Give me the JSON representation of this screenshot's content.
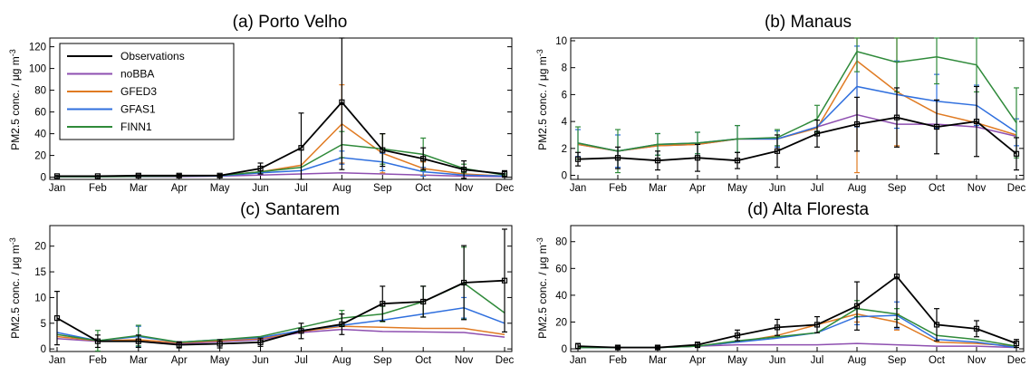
{
  "legend": {
    "entries": [
      {
        "name": "Observations",
        "color": "#000000"
      },
      {
        "name": "noBBA",
        "color": "#8e4fb0"
      },
      {
        "name": "GFED3",
        "color": "#e07b23"
      },
      {
        "name": "GFAS1",
        "color": "#2f6fde"
      },
      {
        "name": "FINN1",
        "color": "#2f8a3a"
      }
    ],
    "placement": "top-left of panel (a)"
  },
  "chart_data": [
    {
      "type": "line",
      "title": "(a) Porto Velho",
      "ylabel": "PM2.5 conc. / μg m⁻³",
      "ylabel_main": "PM2.5 conc. / μg m",
      "ylabel_exp": "-3",
      "categories": [
        "Jan",
        "Feb",
        "Mar",
        "Apr",
        "May",
        "Jun",
        "Jul",
        "Aug",
        "Sep",
        "Oct",
        "Nov",
        "Dec"
      ],
      "ylim": [
        -2,
        128
      ],
      "yticks": [
        0,
        20,
        40,
        60,
        80,
        100,
        120
      ],
      "series": [
        {
          "name": "Observations",
          "color": "#000000",
          "values": [
            1,
            1,
            1.5,
            1.5,
            1.5,
            8,
            27,
            69,
            25,
            17,
            7,
            3
          ],
          "err": [
            0.5,
            0.5,
            0.8,
            1,
            1,
            5,
            32,
            62,
            15,
            10,
            8,
            3
          ]
        },
        {
          "name": "noBBA",
          "color": "#8e4fb0",
          "values": [
            0.5,
            0.5,
            0.5,
            0.5,
            1,
            2,
            3,
            4,
            3,
            2,
            1,
            0.5
          ]
        },
        {
          "name": "GFED3",
          "color": "#e07b23",
          "values": [
            0.5,
            0.5,
            0.8,
            1,
            1.5,
            5,
            11,
            49,
            22,
            8,
            3,
            1
          ],
          "err": [
            0,
            0,
            0,
            0,
            0,
            0,
            0,
            36,
            18,
            6,
            0,
            0
          ]
        },
        {
          "name": "GFAS1",
          "color": "#2f6fde",
          "values": [
            0.5,
            0.5,
            0.8,
            1,
            1.2,
            4,
            6,
            18,
            14,
            5,
            2,
            1
          ],
          "err": [
            0,
            0,
            0,
            0,
            0,
            0,
            0,
            6,
            8,
            4,
            0,
            0
          ]
        },
        {
          "name": "FINN1",
          "color": "#2f8a3a",
          "values": [
            0.5,
            0.5,
            0.8,
            1,
            1.5,
            5,
            9,
            30,
            26,
            21,
            8,
            2
          ],
          "err": [
            0,
            0,
            0,
            0,
            0,
            0,
            0,
            12,
            14,
            15,
            4,
            1
          ]
        }
      ]
    },
    {
      "type": "line",
      "title": "(b) Manaus",
      "ylabel": "PM2.5 conc. / μg m⁻³",
      "ylabel_main": "PM2.5 conc. / μg m",
      "ylabel_exp": "-3",
      "categories": [
        "Jan",
        "Feb",
        "Mar",
        "Apr",
        "May",
        "Jun",
        "Jul",
        "Aug",
        "Sep",
        "Oct",
        "Nov",
        "Dec"
      ],
      "ylim": [
        -0.3,
        10.2
      ],
      "yticks": [
        0,
        2,
        4,
        6,
        8,
        10
      ],
      "series": [
        {
          "name": "Observations",
          "color": "#000000",
          "values": [
            1.2,
            1.3,
            1.1,
            1.3,
            1.1,
            1.8,
            3.1,
            3.8,
            4.3,
            3.6,
            4.0,
            1.6
          ],
          "err": [
            0.5,
            0.8,
            0.7,
            1,
            0.6,
            1.2,
            1,
            2,
            2.2,
            2,
            2.6,
            1.2
          ]
        },
        {
          "name": "noBBA",
          "color": "#8e4fb0",
          "values": [
            2.3,
            1.8,
            2.2,
            2.3,
            2.7,
            2.7,
            3.6,
            4.5,
            3.8,
            3.8,
            3.6,
            2.9
          ]
        },
        {
          "name": "GFED3",
          "color": "#e07b23",
          "values": [
            2.3,
            1.8,
            2.2,
            2.3,
            2.7,
            2.7,
            3.5,
            8.5,
            6.2,
            4.6,
            3.9,
            3.0
          ],
          "err": [
            0,
            0,
            0,
            0,
            0,
            0,
            0,
            8.3,
            4,
            0,
            0,
            0
          ]
        },
        {
          "name": "GFAS1",
          "color": "#2f6fde",
          "values": [
            2.4,
            1.8,
            2.3,
            2.4,
            2.7,
            2.7,
            3.6,
            6.6,
            6.0,
            5.5,
            5.2,
            3.2
          ],
          "err": [
            1,
            1.2,
            0.8,
            0.8,
            1,
            0.6,
            0,
            3,
            2.5,
            2,
            1.5,
            1
          ]
        },
        {
          "name": "FINN1",
          "color": "#2f8a3a",
          "values": [
            2.4,
            1.8,
            2.3,
            2.4,
            2.7,
            2.8,
            4.2,
            9.2,
            8.4,
            8.8,
            8.2,
            3.9
          ],
          "err": [
            1.2,
            1.6,
            0.8,
            0.8,
            1,
            0.6,
            1,
            1.5,
            2.2,
            2,
            2,
            2.6
          ]
        }
      ]
    },
    {
      "type": "line",
      "title": "(c) Santarem",
      "ylabel": "PM2.5 conc. / μg m⁻³",
      "ylabel_main": "PM2.5 conc. / μg m",
      "ylabel_exp": "-3",
      "categories": [
        "Jan",
        "Feb",
        "Mar",
        "Apr",
        "May",
        "Jun",
        "Jul",
        "Aug",
        "Sep",
        "Oct",
        "Nov",
        "Dec"
      ],
      "ylim": [
        -0.5,
        24
      ],
      "yticks": [
        0,
        5,
        10,
        15,
        20
      ],
      "series": [
        {
          "name": "Observations",
          "color": "#000000",
          "values": [
            6,
            1.5,
            1.5,
            0.8,
            1,
            1.3,
            3.5,
            4.8,
            8.8,
            9.2,
            12.9,
            13.3
          ],
          "err": [
            5.2,
            1.2,
            1.2,
            0.6,
            0.8,
            0.8,
            1.5,
            2,
            3.4,
            3,
            7.2,
            10
          ]
        },
        {
          "name": "noBBA",
          "color": "#8e4fb0",
          "values": [
            2,
            1.5,
            1.5,
            1,
            1.4,
            1.8,
            3.2,
            3.8,
            3.4,
            3.3,
            3.2,
            2.3
          ]
        },
        {
          "name": "GFED3",
          "color": "#e07b23",
          "values": [
            2.4,
            1.6,
            1.8,
            1.2,
            1.6,
            2.0,
            3.4,
            4.4,
            4.2,
            4.0,
            4.0,
            2.8
          ]
        },
        {
          "name": "GFAS1",
          "color": "#2f6fde",
          "values": [
            3.2,
            1.6,
            2.4,
            1.3,
            1.8,
            2.2,
            3.6,
            4.6,
            5.6,
            6.8,
            8.0,
            5.0
          ],
          "err": [
            0,
            0,
            2,
            0,
            0,
            0,
            0,
            0,
            0,
            0,
            2,
            0
          ]
        },
        {
          "name": "FINN1",
          "color": "#2f8a3a",
          "values": [
            2.8,
            1.6,
            2.6,
            1.3,
            1.8,
            2.4,
            4.2,
            6.0,
            6.8,
            9.2,
            12.8,
            7.0
          ],
          "err": [
            0,
            2,
            2,
            0,
            0,
            0,
            0,
            1.5,
            1.5,
            3,
            7,
            0
          ]
        }
      ]
    },
    {
      "type": "line",
      "title": "(d) Alta Floresta",
      "ylabel": "PM2.5 conc. / μg m⁻³",
      "ylabel_main": "PM2.5 conc. / μg m",
      "ylabel_exp": "-3",
      "categories": [
        "Jan",
        "Feb",
        "Mar",
        "Apr",
        "May",
        "Jun",
        "Jul",
        "Aug",
        "Sep",
        "Oct",
        "Nov",
        "Dec"
      ],
      "ylim": [
        -2,
        92
      ],
      "yticks": [
        0,
        20,
        40,
        60,
        80
      ],
      "series": [
        {
          "name": "Observations",
          "color": "#000000",
          "values": [
            2,
            1,
            1,
            3,
            10,
            16,
            18,
            32,
            54,
            18,
            15,
            4
          ],
          "err": [
            2,
            1,
            1,
            2,
            4,
            6,
            6,
            18,
            38,
            12,
            6,
            3
          ]
        },
        {
          "name": "noBBA",
          "color": "#8e4fb0",
          "values": [
            1,
            1,
            1,
            2,
            3,
            3,
            3,
            4,
            3,
            2,
            2,
            1
          ]
        },
        {
          "name": "GFED3",
          "color": "#e07b23",
          "values": [
            1,
            1,
            1,
            2,
            5,
            10,
            18,
            26,
            20,
            5,
            4,
            2
          ],
          "err": [
            0,
            0,
            0,
            0,
            0,
            0,
            0,
            6,
            6,
            0,
            0,
            0
          ]
        },
        {
          "name": "GFAS1",
          "color": "#2f6fde",
          "values": [
            1,
            1,
            1,
            2,
            5,
            8,
            12,
            24,
            25,
            7,
            5,
            1
          ],
          "err": [
            0,
            0,
            0,
            0,
            0,
            0,
            0,
            6,
            10,
            0,
            0,
            0
          ]
        },
        {
          "name": "FINN1",
          "color": "#2f8a3a",
          "values": [
            1,
            1,
            1,
            2,
            6,
            9,
            12,
            30,
            26,
            10,
            7,
            2
          ],
          "err": [
            0,
            0,
            0,
            0,
            0,
            0,
            0,
            6,
            4,
            0,
            0,
            0
          ]
        }
      ]
    }
  ]
}
